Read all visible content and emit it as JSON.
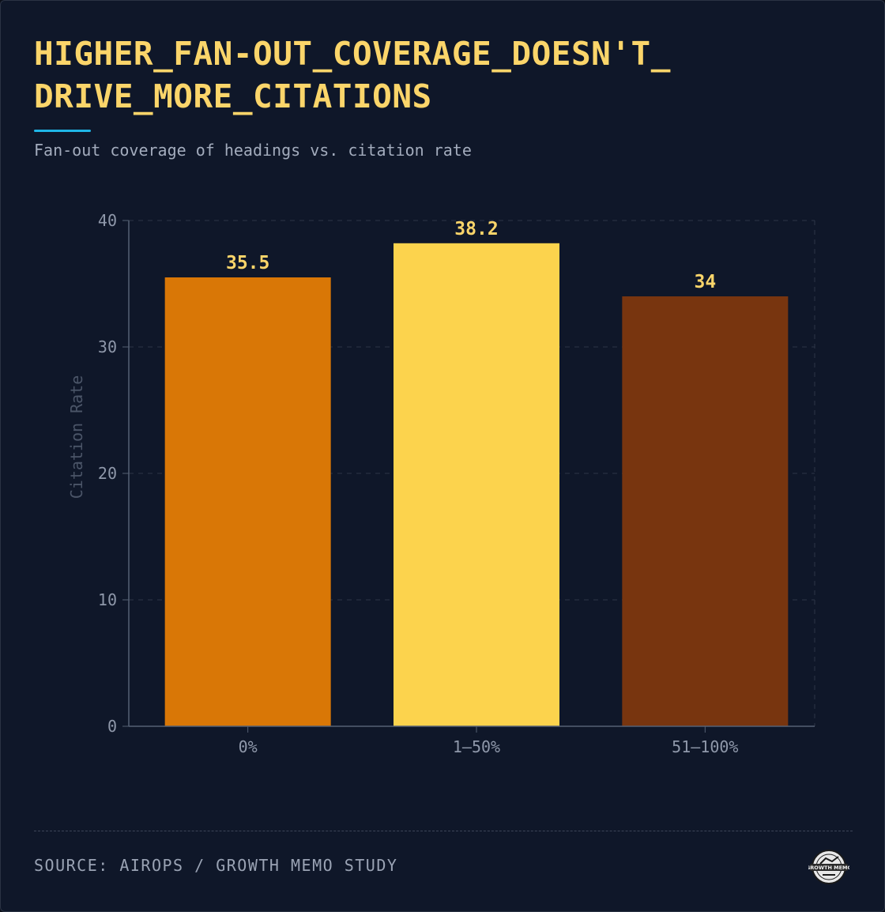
{
  "header": {
    "title": "HIGHER_FAN-OUT_COVERAGE_DOESN'T_ DRIVE_MORE_CITATIONS",
    "subtitle": "Fan-out coverage of headings vs. citation rate"
  },
  "footer": {
    "source": "SOURCE: AIROPS / GROWTH MEMO STUDY",
    "logo_text": "GROWTH MEMO",
    "logo_icon": "growth-memo-badge-icon"
  },
  "colors": {
    "background": "#0f1729",
    "title": "#fbd56a",
    "accent_line": "#1fb6e6",
    "grid": "#2c3547",
    "axis": "#556074",
    "tick_text": "#8f98aa",
    "data_label": "#fbd56a"
  },
  "chart_data": {
    "type": "bar",
    "categories": [
      "0%",
      "1–50%",
      "51–100%"
    ],
    "values": [
      35.5,
      38.2,
      34
    ],
    "value_labels": [
      "35.5",
      "38.2",
      "34"
    ],
    "bar_colors": [
      "#d97706",
      "#fcd34d",
      "#78350f"
    ],
    "ylabel": "Citation Rate",
    "xlabel": "",
    "ylim": [
      0,
      40
    ],
    "yticks": [
      0,
      10,
      20,
      30,
      40
    ],
    "grid": true
  }
}
